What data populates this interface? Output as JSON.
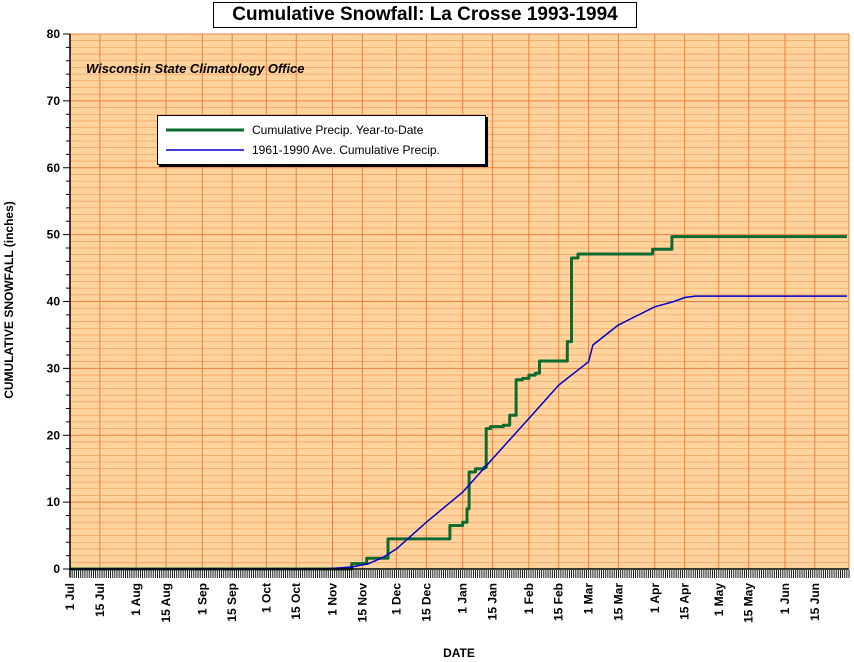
{
  "chart_data": {
    "type": "line",
    "title": "Cumulative Snowfall: La Crosse 1993-1994",
    "subtitle": "Wisconsin State Climatology Office",
    "xlabel": "DATE",
    "ylabel": "CUMULATIVE SNOWFALL (inches)",
    "ylim": [
      0,
      80
    ],
    "yticks": [
      0,
      10,
      20,
      30,
      40,
      50,
      60,
      70,
      80
    ],
    "x_tick_labels": [
      "1 Jul",
      "15 Jul",
      "1 Aug",
      "15 Aug",
      "1 Sep",
      "15 Sep",
      "1 Oct",
      "15 Oct",
      "1 Nov",
      "15 Nov",
      "1 Dec",
      "15 Dec",
      "1 Jan",
      "15 Jan",
      "1 Feb",
      "15 Feb",
      "1 Mar",
      "15 Mar",
      "1 Apr",
      "15 Apr",
      "1 May",
      "15 May",
      "1 Jun",
      "15 Jun"
    ],
    "grid": true,
    "legend_position": "top-left",
    "background_color": "#ffd39b",
    "grid_color": "#e8823c",
    "series": [
      {
        "name": "Cumulative Precip. Year-to-Date",
        "color": "#0d6b2f",
        "step": true,
        "points": [
          [
            "1 Jul",
            0
          ],
          [
            "9 Nov",
            0
          ],
          [
            "10 Nov",
            0.8
          ],
          [
            "16 Nov",
            0.8
          ],
          [
            "17 Nov",
            1.6
          ],
          [
            "26 Nov",
            1.6
          ],
          [
            "27 Nov",
            4.5
          ],
          [
            "2 Dec",
            4.5
          ],
          [
            "25 Dec",
            4.5
          ],
          [
            "26 Dec",
            6.5
          ],
          [
            "30 Dec",
            6.5
          ],
          [
            "1 Jan",
            7
          ],
          [
            "3 Jan",
            9
          ],
          [
            "4 Jan",
            14.5
          ],
          [
            "7 Jan",
            15
          ],
          [
            "11 Jan",
            15.2
          ],
          [
            "12 Jan",
            21
          ],
          [
            "14 Jan",
            21.3
          ],
          [
            "20 Jan",
            21.5
          ],
          [
            "23 Jan",
            23
          ],
          [
            "26 Jan",
            28.3
          ],
          [
            "29 Jan",
            28.5
          ],
          [
            "1 Feb",
            29
          ],
          [
            "4 Feb",
            29.3
          ],
          [
            "6 Feb",
            31.1
          ],
          [
            "18 Feb",
            31.1
          ],
          [
            "19 Feb",
            34
          ],
          [
            "21 Feb",
            46.5
          ],
          [
            "24 Feb",
            47.1
          ],
          [
            "30 Mar",
            47.1
          ],
          [
            "31 Mar",
            47.8
          ],
          [
            "7 Apr",
            47.8
          ],
          [
            "9 Apr",
            49.7
          ],
          [
            "30 Jun",
            49.7
          ]
        ]
      },
      {
        "name": "1961-1990 Ave. Cumulative Precip.",
        "color": "#0000cc",
        "step": false,
        "points": [
          [
            "1 Jul",
            0
          ],
          [
            "28 Oct",
            0
          ],
          [
            "10 Nov",
            0.3
          ],
          [
            "18 Nov",
            0.8
          ],
          [
            "25 Nov",
            1.8
          ],
          [
            "1 Dec",
            3
          ],
          [
            "15 Dec",
            7
          ],
          [
            "1 Jan",
            11.5
          ],
          [
            "15 Jan",
            16.5
          ],
          [
            "1 Feb",
            22.5
          ],
          [
            "15 Feb",
            27.5
          ],
          [
            "1 Mar",
            31
          ],
          [
            "3 Mar",
            33.5
          ],
          [
            "15 Mar",
            36.5
          ],
          [
            "1 Apr",
            39.2
          ],
          [
            "10 Apr",
            40
          ],
          [
            "15 Apr",
            40.6
          ],
          [
            "20 Apr",
            40.8
          ],
          [
            "30 Jun",
            40.8
          ]
        ]
      }
    ]
  }
}
